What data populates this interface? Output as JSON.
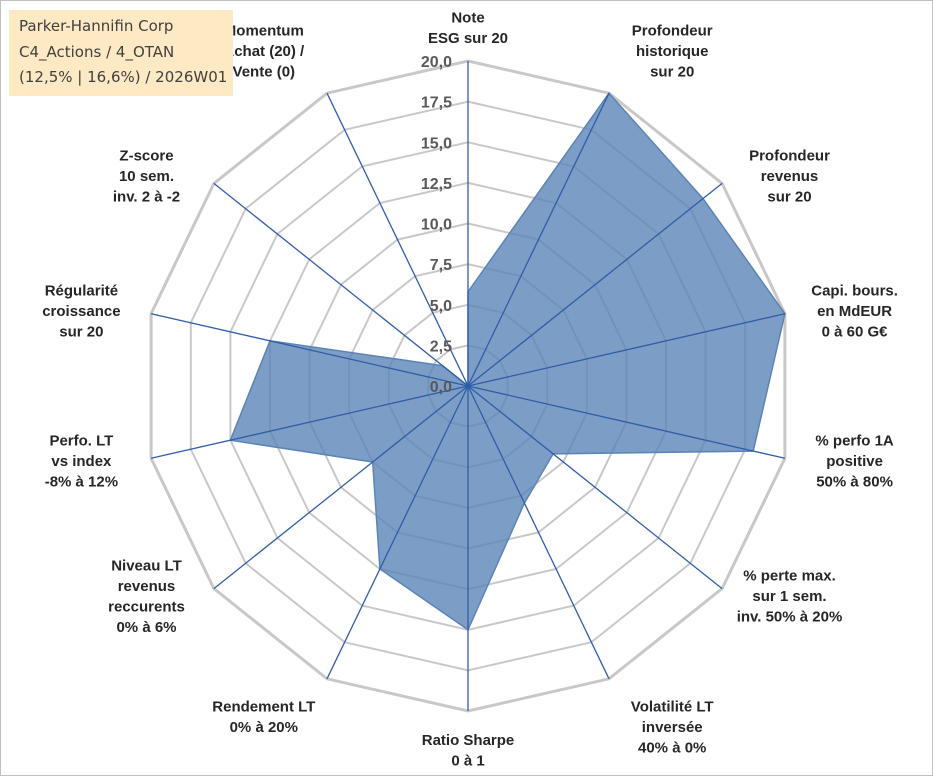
{
  "info_box": {
    "line1": "Parker-Hannifin Corp",
    "line2": "C4_Actions / 4_OTAN",
    "line3": "(12,5% | 16,6%) / 2026W01"
  },
  "colors": {
    "fill": "#5b84b6",
    "fill_opacity": "0.8",
    "spoke": "#2f5ea8",
    "web": "#c8c8c8",
    "label": "#262626",
    "info_bg": "#fde9c3"
  },
  "chart_data": {
    "type": "radar",
    "range": [
      0,
      20
    ],
    "tick_labels": [
      "0,0",
      "2,5",
      "5,0",
      "7,5",
      "10,0",
      "12,5",
      "15,0",
      "17,5",
      "20,0"
    ],
    "axes": [
      {
        "label": [
          "Note",
          "ESG sur 20"
        ],
        "value": 5.8
      },
      {
        "label": [
          "Profondeur",
          "historique",
          "sur 20"
        ],
        "value": 20
      },
      {
        "label": [
          "Profondeur",
          "revenus",
          "sur 20"
        ],
        "value": 18.5
      },
      {
        "label": [
          "Capi. bours.",
          "en MdEUR",
          "0 à 60 G€"
        ],
        "value": 20
      },
      {
        "label": [
          "% perfo 1A",
          "positive",
          "50% à 80%"
        ],
        "value": 18
      },
      {
        "label": [
          "% perte max.",
          "sur 1 sem.",
          "inv. 50% à 20%"
        ],
        "value": 6.7
      },
      {
        "label": [
          "Volatilité LT",
          "inversée",
          "40% à 0%"
        ],
        "value": 8
      },
      {
        "label": [
          "Ratio Sharpe",
          "0 à 1"
        ],
        "value": 15
      },
      {
        "label": [
          "Rendement LT",
          "0% à 20%"
        ],
        "value": 12.5
      },
      {
        "label": [
          "Niveau LT",
          "revenus",
          "reccurents",
          "0% à 6%"
        ],
        "value": 7.5
      },
      {
        "label": [
          "Perfo. LT",
          "vs index",
          "-8% à 12%"
        ],
        "value": 15
      },
      {
        "label": [
          "Régularité",
          "croissance",
          "sur 20"
        ],
        "value": 12.5
      },
      {
        "label": [
          "Z-score",
          "10 sem.",
          "inv. 2 à -2"
        ],
        "value": 2
      },
      {
        "label": [
          "Momentum",
          "Achat (20) /",
          "Vente (0)"
        ],
        "value": 0
      }
    ]
  }
}
